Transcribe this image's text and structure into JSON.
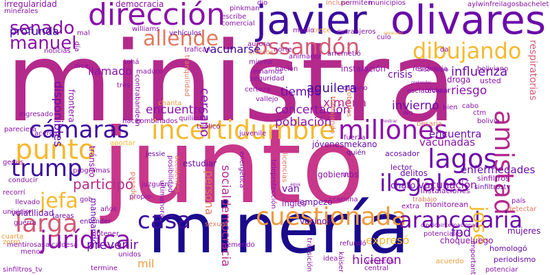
{
  "palette": {
    "navy": "#1a0a8c",
    "indigo": "#3b0a9c",
    "purple": "#6a0ca8",
    "violet": "#8a12a8",
    "magenta": "#b42a8c",
    "pink": "#c8378a",
    "rose": "#d35a74",
    "coral": "#e07a5f",
    "orange": "#ef9a3e",
    "amber": "#f5b92f",
    "yellow": "#efd23a"
  },
  "words": [
    "ministra",
    "junto",
    "minería",
    "javier",
    "olivares",
    "dirección",
    "dibujando",
    "allende",
    "ossandón",
    "senado",
    "manuel",
    "cámaras",
    "incertidumbre",
    "millones",
    "lagos",
    "punto",
    "trump",
    "amistad",
    "ilegales",
    "jefa",
    "participó",
    "larga",
    "casa",
    "cuestionada",
    "arancelaria",
    "jurídica",
    "josé",
    "fpd",
    "hicieron",
    "influenza",
    "aguilera",
    "ximena",
    "riesgo",
    "invierno",
    "tiempo",
    "cercano",
    "población",
    "concertación",
    "encuentra",
    "vacunadas",
    "enfermedades",
    "vacunación",
    "encuentro",
    "llamado",
    "vacunarse",
    "disponibles",
    "profunda",
    "democracia",
    "irregularidad",
    "minerales",
    "respiratorias",
    "persona",
    "socialdemocracia",
    "expresó",
    "prevenir",
    "mil",
    "choqueluego",
    "mujeres",
    "periodismo",
    "homologó",
    "cuarta",
    "volatilidad",
    "tareas",
    "entender",
    "van",
    "vecinos",
    "empezó",
    "inglés",
    "crisis",
    "instalación",
    "droga",
    "usted",
    "olvidar",
    "manejando",
    "jessie",
    "estudiar",
    "jóvenesmekano",
    "acosador",
    "lector",
    "quién",
    "delitos",
    "gobiernos",
    "chato",
    "instalaciones",
    "monitorean",
    "sinfiltros",
    "sinfiltrostv",
    "país",
    "detectar",
    "extra",
    "trabajo",
    "vehículos",
    "williams",
    "pinkman",
    "escribe",
    "comercial",
    "incluso",
    "municipios",
    "aylwinfreilagosbachelet",
    "extranjeros",
    "crece",
    "medio",
    "permiten",
    "dio",
    "mal",
    "noticias",
    "trafican",
    "aurora",
    "norte",
    "animador",
    "arremetió",
    "residencia",
    "boliviano",
    "tohá",
    "maduro",
    "tres",
    "dice",
    "frontera",
    "día",
    "contrabandean",
    "tranquilidad",
    "misma",
    "remamos",
    "seguridad",
    "certeza",
    "chanta",
    "vallejo",
    "camino",
    "cabo",
    "bien",
    "ctm",
    "esclarecer",
    "pareciera",
    "ingresado",
    "hacer",
    "combinados",
    "quilicura",
    "triplicó",
    "juvenile",
    "tránsito",
    "aportar",
    "posibilidad",
    "accidentes",
    "energética",
    "licencias",
    "teleprotección",
    "genus",
    "programas",
    "recorrí",
    "conducir",
    "llevado",
    "univision",
    "guerra",
    "gob",
    "años",
    "propio",
    "juzguen",
    "ultimahora",
    "pasados",
    "sexual",
    "tremendo",
    "alcaldesa",
    "mentirosas",
    "obtener",
    "unidos",
    "zorro",
    "sinfiltros_tv",
    "menos",
    "termine",
    "transición",
    "idea",
    "venecos",
    "central",
    "refundó",
    "káiser",
    "potenciar",
    "importantes",
    "acuerdo",
    "potenciales",
    "cronicainternacional",
    "tildó",
    "logro",
    "besaria",
    "bolivia",
    "ud",
    "camina",
    "acerca",
    "wn",
    "da",
    "culo",
    "nacion",
    "críticos",
    "robados",
    "trabajando",
    "fuerza",
    "agua",
    "separado",
    "pretender",
    "mostrar",
    "donald"
  ]
}
